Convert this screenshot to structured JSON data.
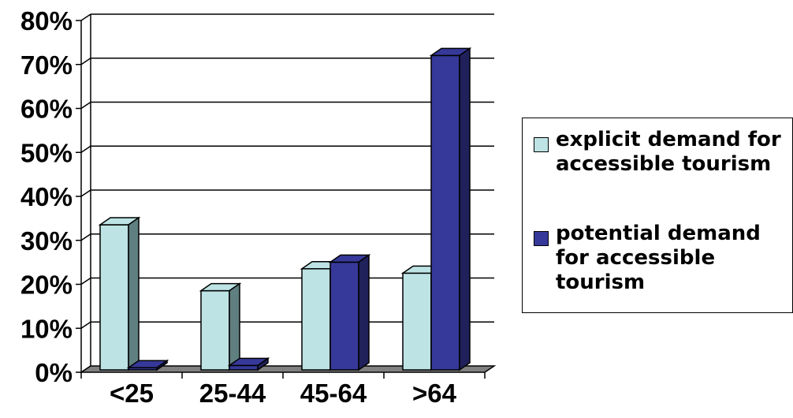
{
  "chart_data": {
    "type": "bar",
    "style": "3d-clustered-column",
    "categories": [
      "<25",
      "25-44",
      "45-64",
      ">64"
    ],
    "series": [
      {
        "name": "explicit demand for accessible tourism",
        "values": [
          33,
          18,
          23,
          22
        ],
        "color": "#BDE3E4",
        "side_color": "#5F7F80"
      },
      {
        "name": "potential demand for accessible tourism",
        "values": [
          0.5,
          1,
          24.5,
          71.5
        ],
        "color": "#363999",
        "side_color": "#20215A"
      }
    ],
    "yticks": [
      "0%",
      "10%",
      "20%",
      "30%",
      "40%",
      "50%",
      "60%",
      "70%",
      "80%"
    ],
    "ylim": [
      0,
      80
    ],
    "grid": true,
    "legend": "right"
  }
}
